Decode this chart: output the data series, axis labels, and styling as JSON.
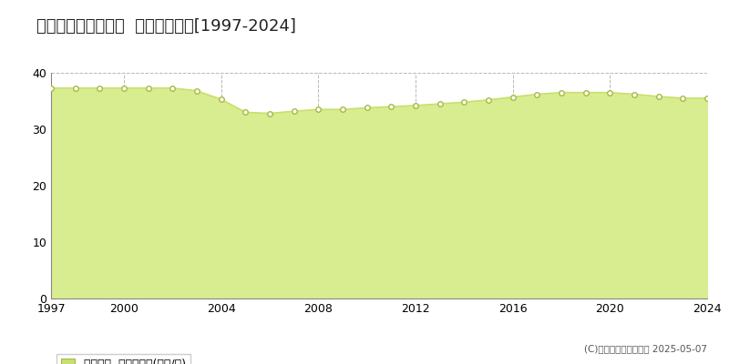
{
  "title": "駿東郡長泉町南一色  基準地価推移[1997-2024]",
  "years": [
    1997,
    1998,
    1999,
    2000,
    2001,
    2002,
    2003,
    2004,
    2005,
    2006,
    2007,
    2008,
    2009,
    2010,
    2011,
    2012,
    2013,
    2014,
    2015,
    2016,
    2017,
    2018,
    2019,
    2020,
    2021,
    2022,
    2023,
    2024
  ],
  "values": [
    37.3,
    37.3,
    37.3,
    37.3,
    37.3,
    37.3,
    36.8,
    35.3,
    33.0,
    32.8,
    33.2,
    33.5,
    33.5,
    33.8,
    34.0,
    34.2,
    34.5,
    34.8,
    35.2,
    35.7,
    36.2,
    36.5,
    36.5,
    36.5,
    36.2,
    35.8,
    35.5,
    35.5
  ],
  "ylim": [
    0,
    40
  ],
  "yticks": [
    0,
    10,
    20,
    30,
    40
  ],
  "xticks": [
    1997,
    2000,
    2004,
    2008,
    2012,
    2016,
    2020,
    2024
  ],
  "line_color": "#c8e06e",
  "fill_color": "#d8ed90",
  "marker_facecolor": "#ffffff",
  "marker_edge_color": "#a8b840",
  "grid_color": "#b8b8b8",
  "bg_color": "#ffffff",
  "legend_label": "基準地価  平均嵪単価(万円/嵪)",
  "legend_marker_color": "#c8e06e",
  "copyright_text": "(C)土地価格ドットコム 2025-05-07",
  "title_fontsize": 13,
  "axis_fontsize": 9,
  "legend_fontsize": 9
}
